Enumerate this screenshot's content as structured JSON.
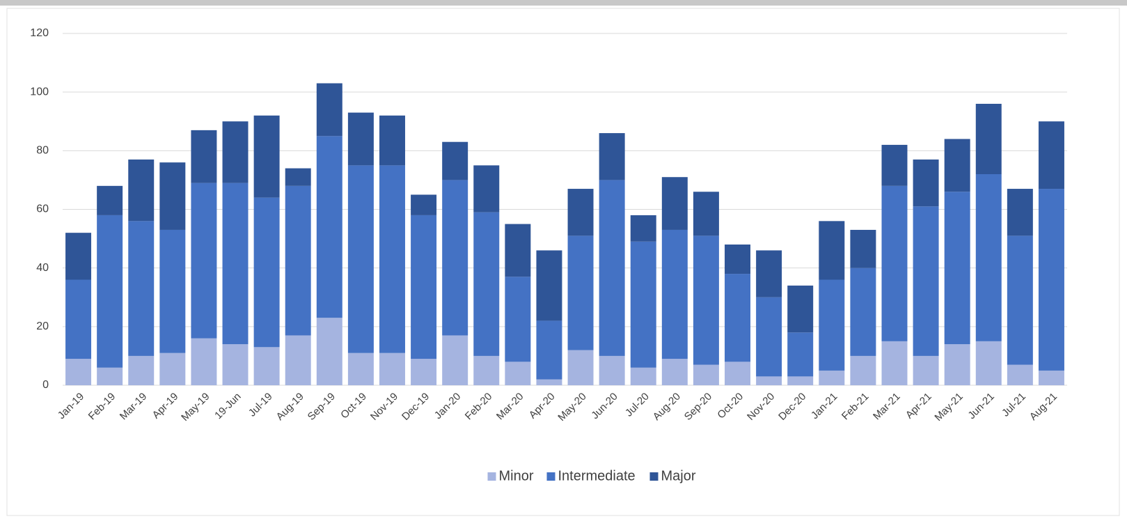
{
  "chart_data": {
    "type": "stacked_bar",
    "categories": [
      "Jan-19",
      "Feb-19",
      "Mar-19",
      "Apr-19",
      "May-19",
      "19-Jun",
      "Jul-19",
      "Aug-19",
      "Sep-19",
      "Oct-19",
      "Nov-19",
      "Dec-19",
      "Jan-20",
      "Feb-20",
      "Mar-20",
      "Apr-20",
      "May-20",
      "Jun-20",
      "Jul-20",
      "Aug-20",
      "Sep-20",
      "Oct-20",
      "Nov-20",
      "Dec-20",
      "Jan-21",
      "Feb-21",
      "Mar-21",
      "Apr-21",
      "May-21",
      "Jun-21",
      "Jul-21",
      "Aug-21"
    ],
    "series": [
      {
        "name": "Minor",
        "color": "#a5b4e0",
        "values": [
          9,
          6,
          10,
          11,
          16,
          14,
          13,
          17,
          23,
          11,
          11,
          9,
          17,
          10,
          8,
          2,
          12,
          10,
          6,
          9,
          7,
          8,
          3,
          3,
          5,
          10,
          15,
          10,
          14,
          15,
          7,
          5
        ]
      },
      {
        "name": "Intermediate",
        "color": "#4472c4",
        "values": [
          27,
          52,
          46,
          42,
          53,
          55,
          51,
          51,
          62,
          64,
          64,
          49,
          53,
          49,
          29,
          20,
          39,
          60,
          43,
          44,
          44,
          30,
          27,
          15,
          31,
          30,
          53,
          51,
          52,
          57,
          44,
          62
        ]
      },
      {
        "name": "Major",
        "color": "#2f5597",
        "values": [
          16,
          10,
          21,
          23,
          18,
          21,
          28,
          6,
          18,
          18,
          17,
          7,
          13,
          16,
          18,
          24,
          16,
          16,
          9,
          18,
          15,
          10,
          16,
          16,
          20,
          13,
          14,
          16,
          18,
          24,
          16,
          23
        ]
      }
    ],
    "ylim": [
      0,
      120
    ],
    "yticks": [
      0,
      20,
      40,
      60,
      80,
      100,
      120
    ],
    "grid": true,
    "legend": "bottom"
  }
}
